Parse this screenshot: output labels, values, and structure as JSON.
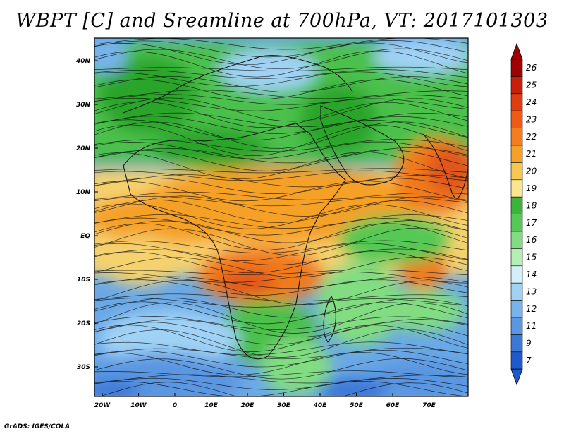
{
  "title": "WBPT [C] and Sreamline at 700hPa, VT: 2017101303",
  "credit": "GrADS: IGES/COLA",
  "map": {
    "variable": "Wet bulb potential temperature",
    "level": "700hPa",
    "lat_labels": [
      "40N",
      "30N",
      "20N",
      "10N",
      "EQ",
      "10S",
      "20S",
      "30S"
    ],
    "lon_labels": [
      "20W",
      "10W",
      "0",
      "10E",
      "20E",
      "30E",
      "40E",
      "50E",
      "60E",
      "70E"
    ]
  },
  "legend": {
    "levels": [
      "26",
      "25",
      "24",
      "23",
      "22",
      "21",
      "20",
      "19",
      "18",
      "17",
      "16",
      "15",
      "14",
      "13",
      "12",
      "11",
      "9",
      "7"
    ],
    "colors": [
      "#a00000",
      "#c81e0a",
      "#e03c0f",
      "#f05a14",
      "#f57d1e",
      "#f5a028",
      "#f5c850",
      "#fae68c",
      "#3cb43c",
      "#55c855",
      "#82dc82",
      "#b4f0b4",
      "#d2f0fa",
      "#a0d2f5",
      "#78b4eb",
      "#5a96e1",
      "#3c78d7",
      "#1e5acd"
    ],
    "top_cap_color": "#a00000",
    "bottom_cap_color": "#1e5acd"
  }
}
